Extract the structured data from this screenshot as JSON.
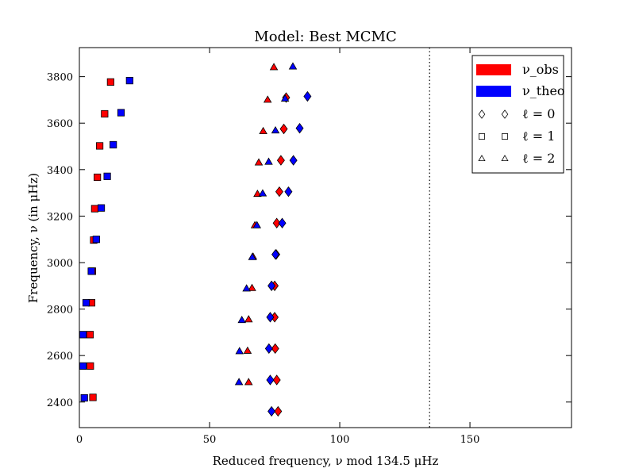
{
  "chart_data": {
    "type": "scatter",
    "title": "Model: Best MCMC",
    "xlabel": "Reduced frequency, ν mod 134.5 μHz",
    "ylabel": "Frequency, ν (in μHz)",
    "xlim": [
      0,
      189
    ],
    "ylim": [
      2290,
      3925
    ],
    "x_ticks": [
      0,
      50,
      100,
      150
    ],
    "y_ticks": [
      2400,
      2600,
      2800,
      3000,
      3200,
      3400,
      3600,
      3800
    ],
    "x_tick_labels": [
      "0",
      "50",
      "100",
      "150"
    ],
    "y_tick_labels": [
      "2400",
      "2600",
      "2800",
      "3000",
      "3200",
      "3400",
      "3600",
      "3800"
    ],
    "vline": {
      "x": 134.5,
      "style": "dotted"
    },
    "grid": false,
    "legend_position": "top-right",
    "legend": [
      {
        "label": "ν_obs",
        "kind": "patch",
        "color": "#ff0000"
      },
      {
        "label": "ν_theo",
        "kind": "patch",
        "color": "#0000ff"
      },
      {
        "label": "ℓ = 0",
        "kind": "marker",
        "marker": "diamond"
      },
      {
        "label": "ℓ = 1",
        "kind": "marker",
        "marker": "square"
      },
      {
        "label": "ℓ = 2",
        "kind": "marker",
        "marker": "triangle"
      }
    ],
    "colors": {
      "obs": "#ff0000",
      "theo": "#0000ff"
    },
    "series": [
      {
        "name": "ν_obs",
        "degree": 0,
        "marker": "diamond",
        "color": "#ff0000",
        "points": [
          {
            "x": 76.3,
            "y": 2360
          },
          {
            "x": 75.8,
            "y": 2495
          },
          {
            "x": 75.2,
            "y": 2630
          },
          {
            "x": 75.0,
            "y": 2765
          },
          {
            "x": 75.0,
            "y": 2900
          },
          {
            "x": 75.6,
            "y": 3035
          },
          {
            "x": 75.8,
            "y": 3170
          },
          {
            "x": 76.8,
            "y": 3305
          },
          {
            "x": 77.4,
            "y": 3440
          },
          {
            "x": 78.5,
            "y": 3575
          },
          {
            "x": 79.4,
            "y": 3710
          }
        ]
      },
      {
        "name": "ν_theo",
        "degree": 0,
        "marker": "diamond",
        "color": "#0000ff",
        "points": [
          {
            "x": 73.8,
            "y": 2360
          },
          {
            "x": 73.3,
            "y": 2495
          },
          {
            "x": 72.8,
            "y": 2630
          },
          {
            "x": 73.3,
            "y": 2765
          },
          {
            "x": 73.8,
            "y": 2900
          },
          {
            "x": 75.3,
            "y": 3035
          },
          {
            "x": 77.9,
            "y": 3170
          },
          {
            "x": 80.3,
            "y": 3305
          },
          {
            "x": 82.2,
            "y": 3440
          },
          {
            "x": 84.6,
            "y": 3578
          },
          {
            "x": 87.6,
            "y": 3715
          }
        ]
      },
      {
        "name": "ν_obs",
        "degree": 1,
        "marker": "square",
        "color": "#ff0000",
        "points": [
          {
            "x": 5.2,
            "y": 2420
          },
          {
            "x": 4.2,
            "y": 2555
          },
          {
            "x": 4.1,
            "y": 2690
          },
          {
            "x": 4.7,
            "y": 2827
          },
          {
            "x": 5.0,
            "y": 2963
          },
          {
            "x": 5.5,
            "y": 3097
          },
          {
            "x": 5.9,
            "y": 3232
          },
          {
            "x": 6.9,
            "y": 3367
          },
          {
            "x": 7.8,
            "y": 3502
          },
          {
            "x": 9.7,
            "y": 3640
          },
          {
            "x": 12.0,
            "y": 3777
          }
        ]
      },
      {
        "name": "ν_theo",
        "degree": 1,
        "marker": "square",
        "color": "#0000ff",
        "points": [
          {
            "x": 1.9,
            "y": 2418
          },
          {
            "x": 1.4,
            "y": 2555
          },
          {
            "x": 1.4,
            "y": 2690
          },
          {
            "x": 2.6,
            "y": 2827
          },
          {
            "x": 4.6,
            "y": 2963
          },
          {
            "x": 6.5,
            "y": 3100
          },
          {
            "x": 8.4,
            "y": 3235
          },
          {
            "x": 10.7,
            "y": 3371
          },
          {
            "x": 13.0,
            "y": 3507
          },
          {
            "x": 16.0,
            "y": 3645
          },
          {
            "x": 19.3,
            "y": 3783
          }
        ]
      },
      {
        "name": "ν_obs",
        "degree": 2,
        "marker": "triangle",
        "color": "#ff0000",
        "points": [
          {
            "x": 65.0,
            "y": 2485
          },
          {
            "x": 64.6,
            "y": 2620
          },
          {
            "x": 65.0,
            "y": 2755
          },
          {
            "x": 66.3,
            "y": 2890
          },
          {
            "x": 66.7,
            "y": 3025
          },
          {
            "x": 67.4,
            "y": 3160
          },
          {
            "x": 68.4,
            "y": 3295
          },
          {
            "x": 68.9,
            "y": 3430
          },
          {
            "x": 70.6,
            "y": 3565
          },
          {
            "x": 72.3,
            "y": 3700
          },
          {
            "x": 74.7,
            "y": 3840
          }
        ]
      },
      {
        "name": "ν_theo",
        "degree": 2,
        "marker": "triangle",
        "color": "#0000ff",
        "points": [
          {
            "x": 61.3,
            "y": 2485
          },
          {
            "x": 61.5,
            "y": 2618
          },
          {
            "x": 62.4,
            "y": 2752
          },
          {
            "x": 64.2,
            "y": 2888
          },
          {
            "x": 66.4,
            "y": 3023
          },
          {
            "x": 68.2,
            "y": 3160
          },
          {
            "x": 70.4,
            "y": 3297
          },
          {
            "x": 72.7,
            "y": 3433
          },
          {
            "x": 75.3,
            "y": 3568
          },
          {
            "x": 79.0,
            "y": 3705
          },
          {
            "x": 82.0,
            "y": 3843
          }
        ]
      }
    ]
  }
}
